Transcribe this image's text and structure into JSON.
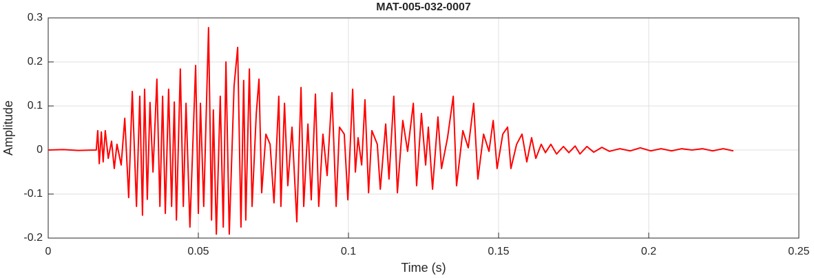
{
  "chart_data": {
    "type": "line",
    "title": "MAT-005-032-0007",
    "x_label": "Time (s)",
    "y_label": "Amplitude",
    "xlim": [
      0,
      0.25
    ],
    "ylim": [
      -0.2,
      0.3
    ],
    "xticks": [
      0,
      0.05,
      0.1,
      0.15,
      0.2,
      0.25
    ],
    "yticks": [
      -0.2,
      -0.1,
      0,
      0.1,
      0.2,
      0.3
    ],
    "grid": true,
    "x": [
      0,
      0.005,
      0.01,
      0.016,
      0.0165,
      0.017,
      0.0177,
      0.0183,
      0.019,
      0.02,
      0.0211,
      0.022,
      0.0229,
      0.0243,
      0.0255,
      0.0268,
      0.028,
      0.0294,
      0.0305,
      0.0314,
      0.0321,
      0.033,
      0.0339,
      0.0349,
      0.0362,
      0.0372,
      0.0381,
      0.039,
      0.0401,
      0.0411,
      0.042,
      0.0427,
      0.044,
      0.045,
      0.0459,
      0.0472,
      0.0491,
      0.05,
      0.0507,
      0.0518,
      0.0534,
      0.0544,
      0.055,
      0.056,
      0.0573,
      0.0583,
      0.0592,
      0.0603,
      0.0619,
      0.0631,
      0.0642,
      0.0651,
      0.0658,
      0.067,
      0.0679,
      0.0693,
      0.0702,
      0.0711,
      0.0725,
      0.0739,
      0.0752,
      0.0768,
      0.0775,
      0.0787,
      0.0798,
      0.0812,
      0.0828,
      0.0842,
      0.0851,
      0.0865,
      0.0876,
      0.089,
      0.0901,
      0.0915,
      0.0929,
      0.0945,
      0.0959,
      0.097,
      0.0986,
      0.0998,
      0.1014,
      0.1023,
      0.1032,
      0.1044,
      0.1055,
      0.1067,
      0.1078,
      0.1096,
      0.1106,
      0.1124,
      0.1135,
      0.1151,
      0.1163,
      0.1181,
      0.1197,
      0.1216,
      0.1227,
      0.1243,
      0.1257,
      0.1266,
      0.128,
      0.1298,
      0.131,
      0.133,
      0.1349,
      0.136,
      0.1381,
      0.1399,
      0.1417,
      0.1431,
      0.145,
      0.1468,
      0.1482,
      0.1495,
      0.1514,
      0.153,
      0.1541,
      0.156,
      0.1578,
      0.1594,
      0.161,
      0.1624,
      0.1642,
      0.1656,
      0.1674,
      0.1693,
      0.1716,
      0.1734,
      0.1755,
      0.1771,
      0.1794,
      0.1817,
      0.1844,
      0.1869,
      0.1904,
      0.1938,
      0.1972,
      0.2007,
      0.2041,
      0.2076,
      0.211,
      0.2144,
      0.2179,
      0.2213,
      0.2248,
      0.2282
    ],
    "series": [
      {
        "color": "#ff0000",
        "values": [
          0,
          0.001,
          -0.001,
          0,
          0.044,
          -0.031,
          0.041,
          -0.027,
          0.044,
          -0.019,
          0.02,
          -0.042,
          0.013,
          -0.034,
          0.072,
          -0.108,
          0.133,
          -0.128,
          0.122,
          -0.148,
          0.138,
          -0.112,
          0.108,
          -0.05,
          0.161,
          -0.128,
          0.122,
          -0.144,
          0.138,
          -0.128,
          0.109,
          -0.159,
          0.184,
          -0.128,
          0.106,
          -0.175,
          0.192,
          -0.144,
          0.106,
          -0.128,
          0.278,
          -0.159,
          0.091,
          -0.191,
          0.122,
          -0.175,
          0.2,
          -0.191,
          0.145,
          0.233,
          -0.175,
          0.158,
          -0.159,
          0.184,
          -0.128,
          0.083,
          0.161,
          -0.097,
          0.036,
          0.013,
          -0.12,
          0.122,
          -0.128,
          0.106,
          -0.081,
          0.052,
          -0.163,
          0.142,
          -0.128,
          0.059,
          -0.113,
          0.127,
          -0.128,
          0.036,
          -0.058,
          0.13,
          -0.128,
          0.052,
          0.036,
          -0.113,
          0.138,
          -0.05,
          0.028,
          -0.034,
          0.114,
          -0.097,
          0.044,
          0.013,
          -0.089,
          0.059,
          -0.066,
          0.122,
          -0.097,
          0.067,
          -0.003,
          0.106,
          -0.081,
          0.083,
          -0.034,
          0.052,
          -0.089,
          0.075,
          -0.042,
          0.028,
          0.122,
          -0.081,
          0.044,
          0.005,
          0.106,
          -0.066,
          0.036,
          -0.003,
          0.067,
          -0.042,
          0.036,
          0.052,
          -0.042,
          0.013,
          0.036,
          -0.027,
          0.028,
          -0.019,
          0.013,
          -0.006,
          0.013,
          -0.009,
          0.008,
          -0.006,
          0.009,
          -0.009,
          0.008,
          -0.005,
          0.006,
          -0.003,
          0.003,
          -0.002,
          0.005,
          -0.002,
          0.003,
          -0.002,
          0.003,
          0,
          0.003,
          -0.002,
          0.003,
          -0.002
        ]
      }
    ]
  }
}
